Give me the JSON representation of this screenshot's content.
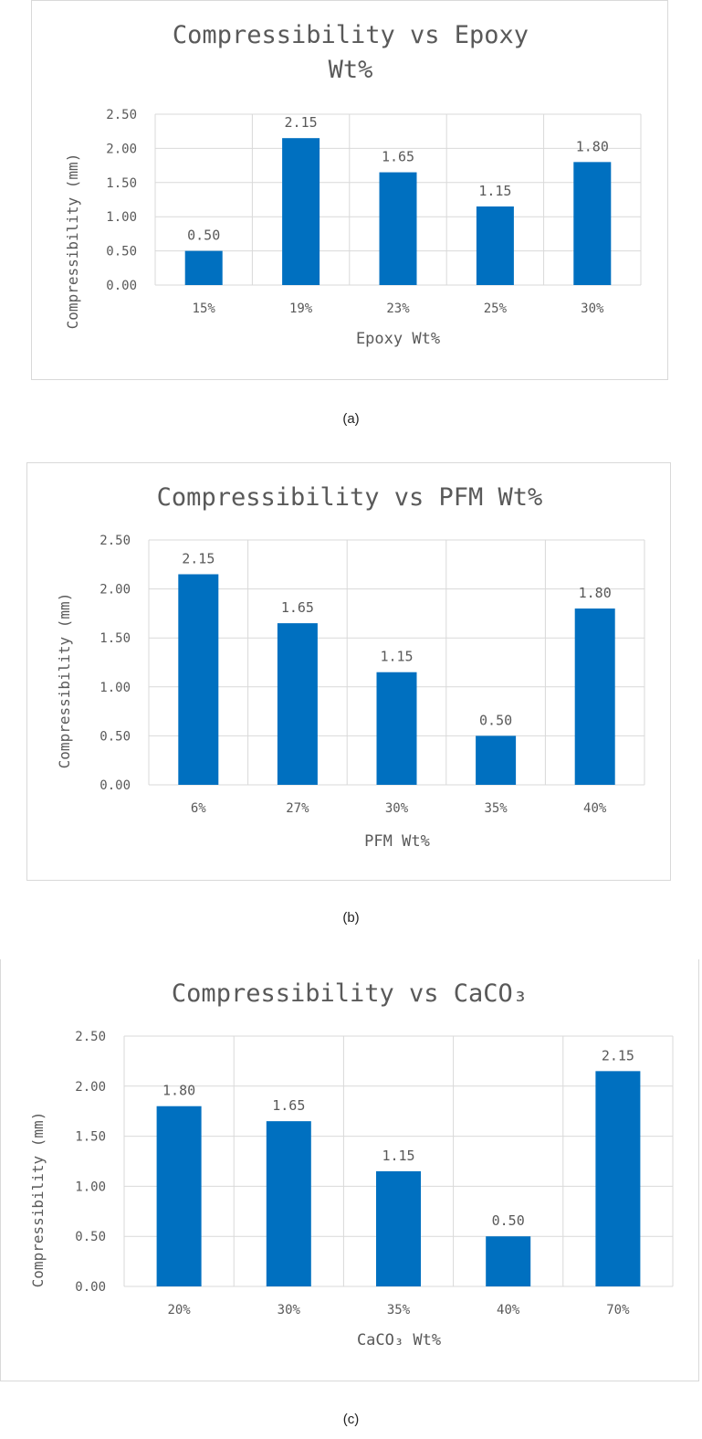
{
  "colors": {
    "bar": "#0070C0",
    "grid": "#d9d9d9",
    "axis_text": "#595959",
    "title_text": "#595959"
  },
  "chart_data": [
    {
      "type": "bar",
      "title_lines": [
        "Compressibility  vs Epoxy",
        "Wt%"
      ],
      "xlabel": "Epoxy Wt%",
      "ylabel": "Compressibility (mm)",
      "categories": [
        "15%",
        "19%",
        "23%",
        "25%",
        "30%"
      ],
      "values": [
        0.5,
        2.15,
        1.65,
        1.15,
        1.8
      ],
      "data_labels": [
        "0.50",
        "2.15",
        "1.65",
        "1.15",
        "1.80"
      ],
      "yticks": [
        "0.00",
        "0.50",
        "1.00",
        "1.50",
        "2.00",
        "2.50"
      ],
      "ylim": [
        0,
        2.5
      ],
      "grid": true,
      "caption": "(a)"
    },
    {
      "type": "bar",
      "title_lines": [
        "Compressibility vs PFM Wt%"
      ],
      "xlabel": "PFM Wt%",
      "ylabel": "Compressibility (mm)",
      "categories": [
        "6%",
        "27%",
        "30%",
        "35%",
        "40%"
      ],
      "values": [
        2.15,
        1.65,
        1.15,
        0.5,
        1.8
      ],
      "data_labels": [
        "2.15",
        "1.65",
        "1.15",
        "0.50",
        "1.80"
      ],
      "yticks": [
        "0.00",
        "0.50",
        "1.00",
        "1.50",
        "2.00",
        "2.50"
      ],
      "ylim": [
        0,
        2.5
      ],
      "grid": true,
      "caption": "(b)"
    },
    {
      "type": "bar",
      "title_lines": [
        "Compressibility vs CaCO₃"
      ],
      "xlabel": "CaCO₃ Wt%",
      "ylabel": "Compressibility (mm)",
      "categories": [
        "20%",
        "30%",
        "35%",
        "40%",
        "70%"
      ],
      "values": [
        1.8,
        1.65,
        1.15,
        0.5,
        2.15
      ],
      "data_labels": [
        "1.80",
        "1.65",
        "1.15",
        "0.50",
        "2.15"
      ],
      "yticks": [
        "0.00",
        "0.50",
        "1.00",
        "1.50",
        "2.00",
        "2.50"
      ],
      "ylim": [
        0,
        2.5
      ],
      "grid": true,
      "caption": "(c)"
    }
  ]
}
